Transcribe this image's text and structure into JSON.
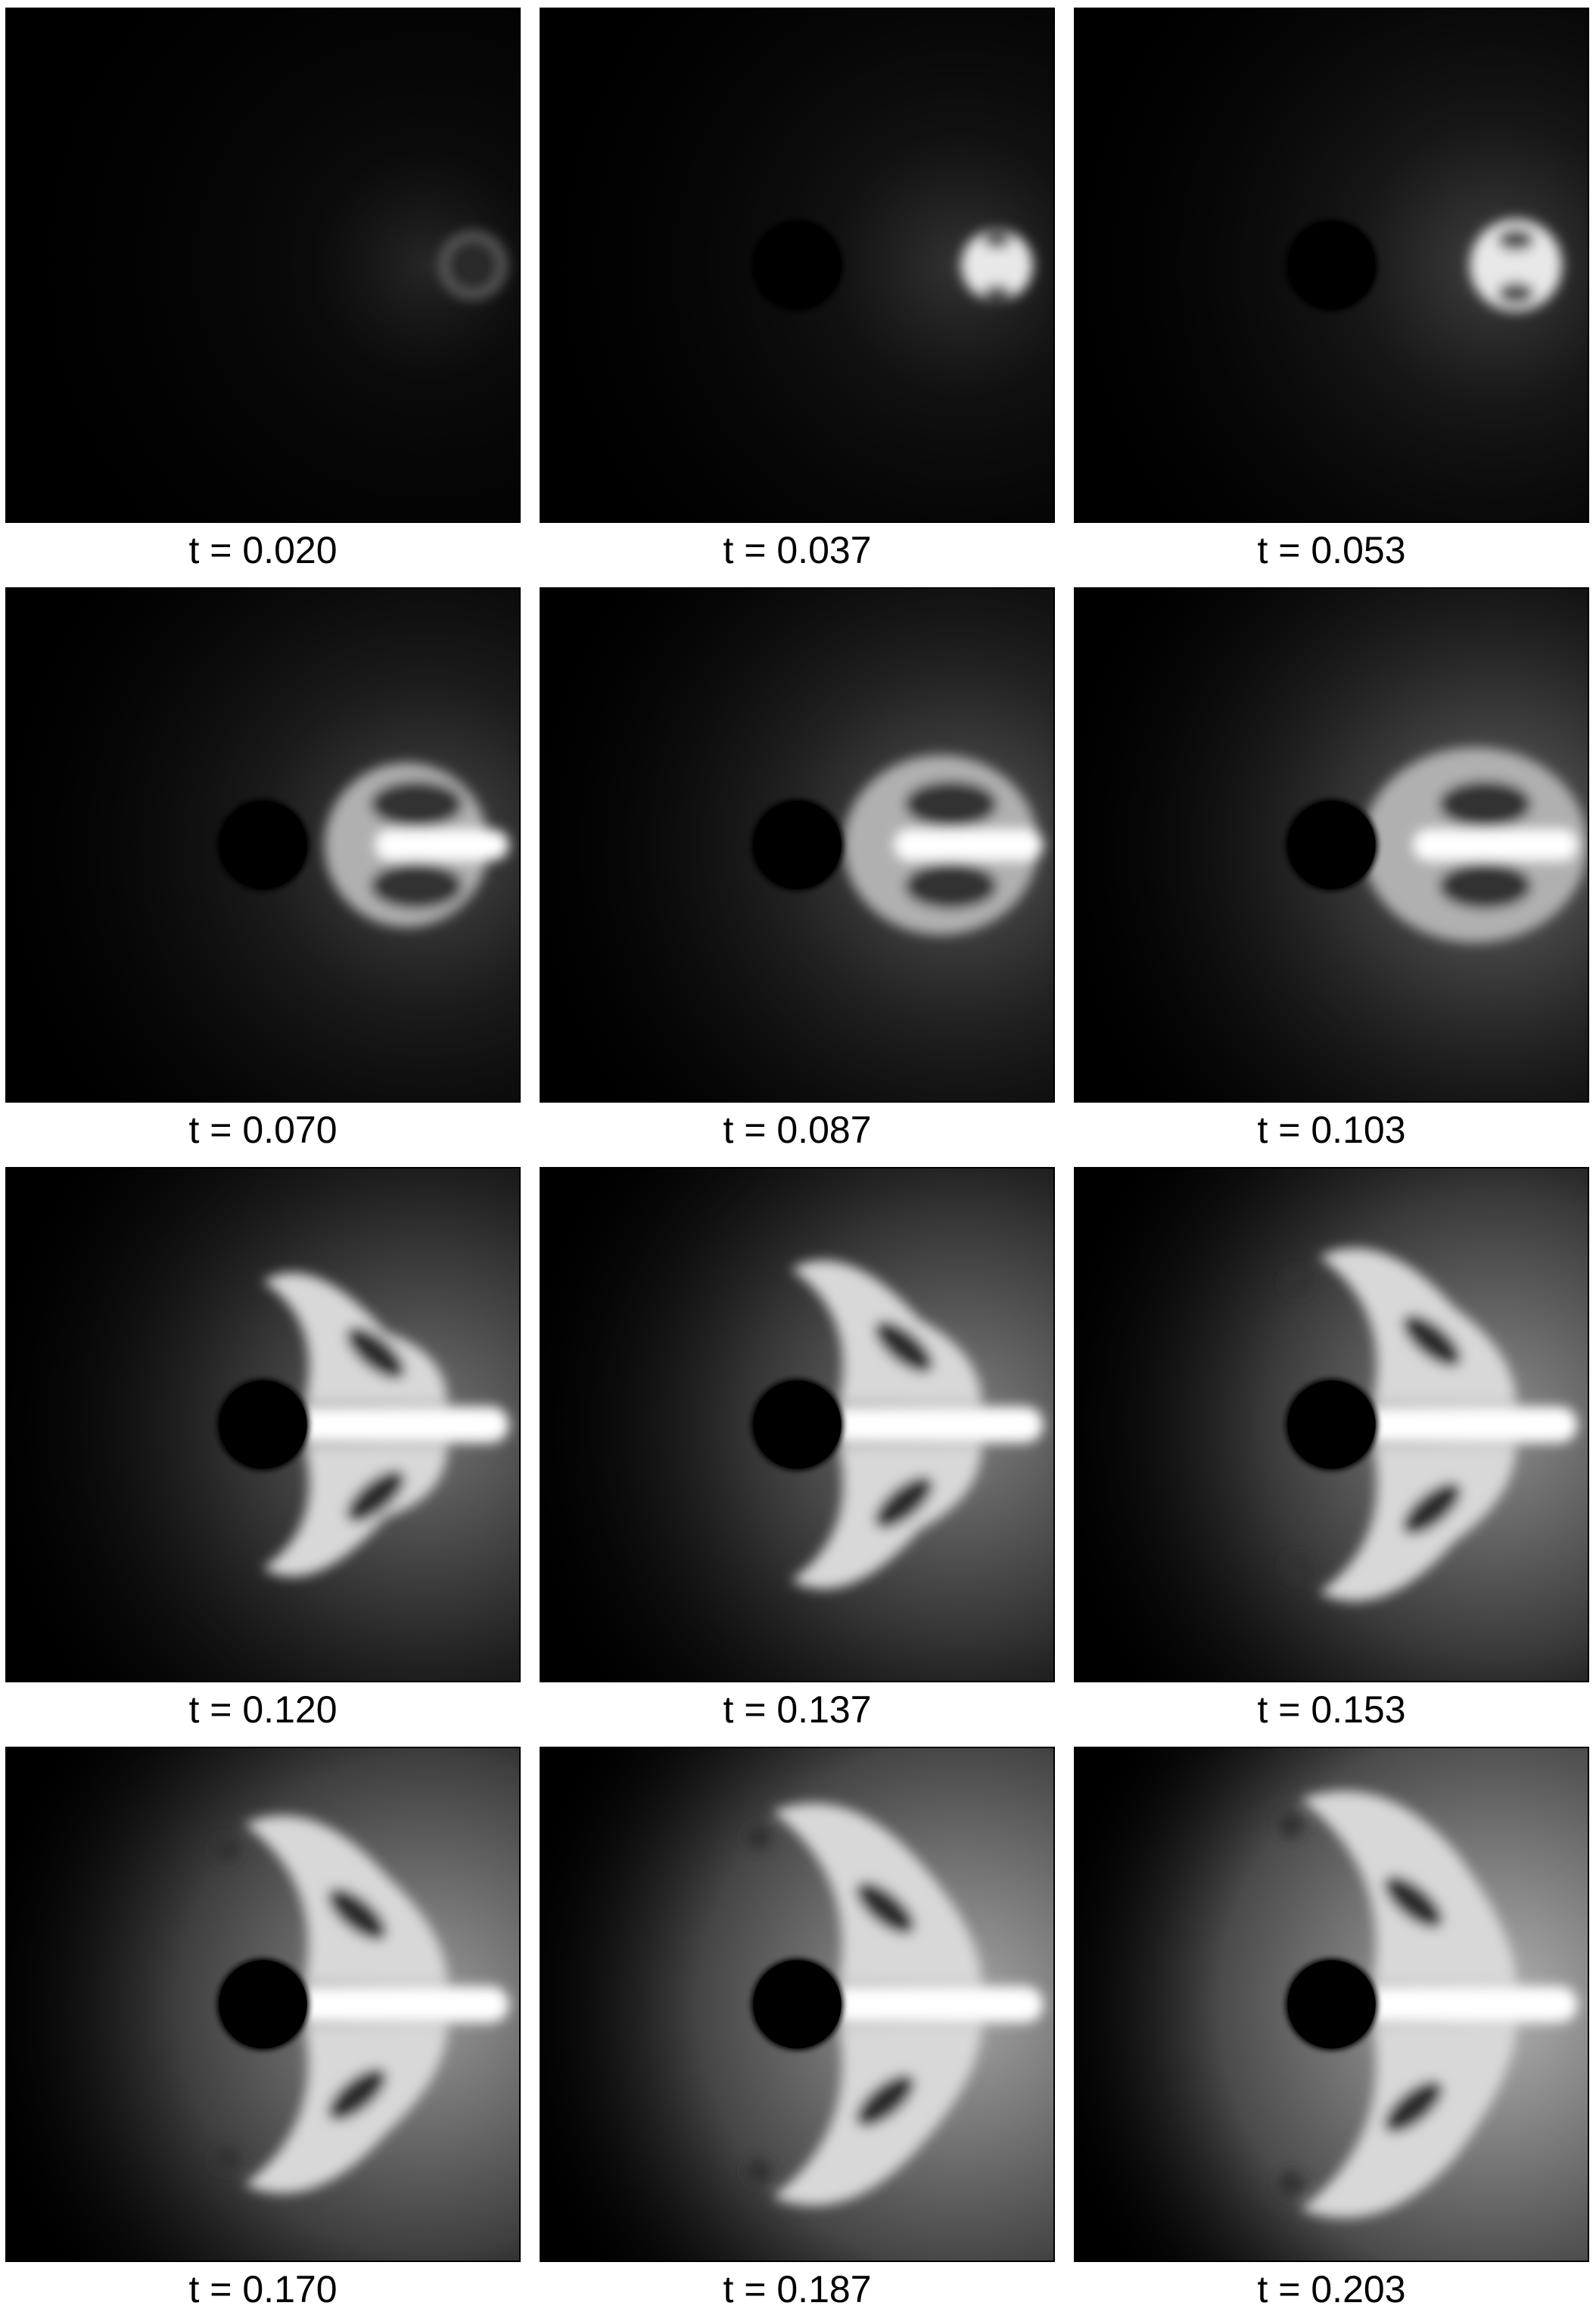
{
  "figure": {
    "frames": [
      {
        "label": "t = 0.020",
        "t": 0.02
      },
      {
        "label": "t = 0.037",
        "t": 0.037
      },
      {
        "label": "t = 0.053",
        "t": 0.053
      },
      {
        "label": "t = 0.070",
        "t": 0.07
      },
      {
        "label": "t = 0.087",
        "t": 0.087
      },
      {
        "label": "t = 0.103",
        "t": 0.103
      },
      {
        "label": "t = 0.120",
        "t": 0.12
      },
      {
        "label": "t = 0.137",
        "t": 0.137
      },
      {
        "label": "t = 0.153",
        "t": 0.153
      },
      {
        "label": "t = 0.170",
        "t": 0.17
      },
      {
        "label": "t = 0.187",
        "t": 0.187
      },
      {
        "label": "t = 0.203",
        "t": 0.203
      }
    ],
    "colors": {
      "background": "#ffffff",
      "field_dark": "#000000",
      "field_bright": "#ffffff",
      "obstacle": "#000000"
    }
  }
}
